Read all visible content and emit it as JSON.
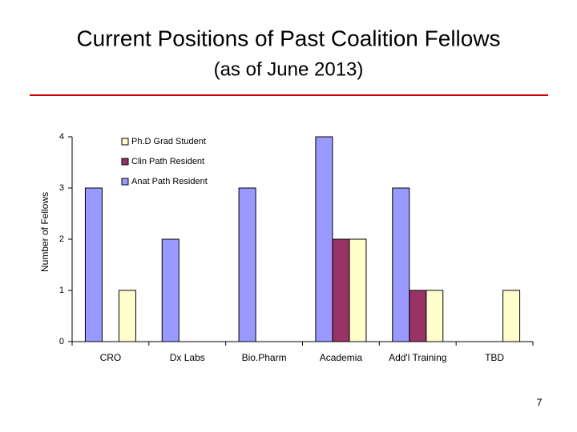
{
  "chart_data": {
    "type": "bar",
    "title": "Current Positions of Past Coalition Fellows",
    "subtitle": "(as of June 2013)",
    "y_label": "Number of Fellows",
    "categories": [
      "CRO",
      "Dx Labs",
      "Bio.Pharm",
      "Academia",
      "Add'l Training",
      "TBD"
    ],
    "series": [
      {
        "name": "Ph.D Grad Student",
        "color": "#ffffcc",
        "values": [
          1,
          0,
          0,
          2,
          1,
          1
        ]
      },
      {
        "name": "Clin Path Resident",
        "color": "#993366",
        "values": [
          0,
          0,
          0,
          2,
          1,
          0
        ]
      },
      {
        "name": "Anat Path Resident",
        "color": "#9999ff",
        "values": [
          3,
          2,
          3,
          4,
          3,
          0
        ]
      }
    ],
    "ylim": [
      0,
      4
    ],
    "yticks": [
      0,
      1,
      2,
      3,
      4
    ],
    "grid": false
  },
  "slide_number": "7"
}
